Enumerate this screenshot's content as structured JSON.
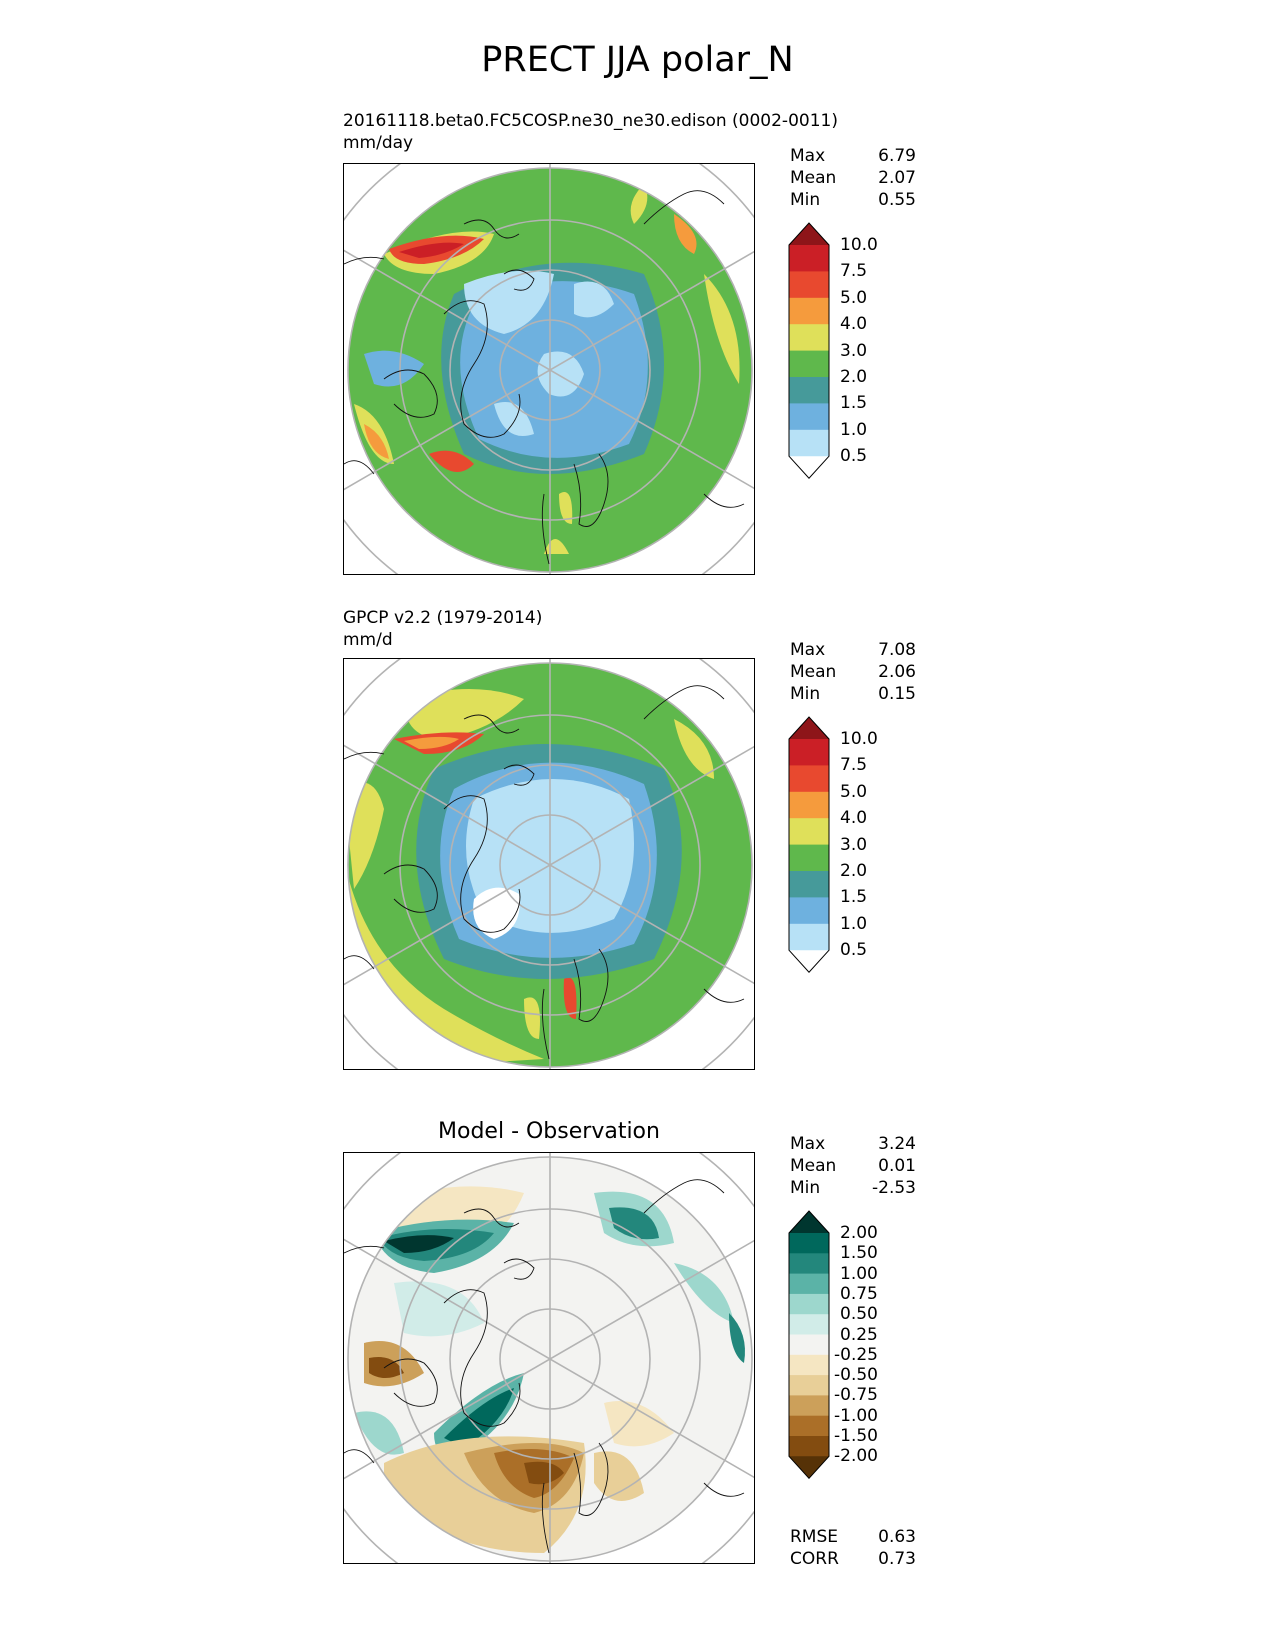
{
  "figure": {
    "title": "PRECT JJA polar_N"
  },
  "panels": [
    {
      "id": "model",
      "caption_line1": "20161118.beta0.FC5COSP.ne30_ne30.edison (0002-0011)",
      "caption_line2": "mm/day",
      "stats": [
        {
          "label": "Max",
          "value": "6.79"
        },
        {
          "label": "Mean",
          "value": "2.07"
        },
        {
          "label": "Min",
          "value": "0.55"
        }
      ],
      "colorbar": {
        "levels": [
          "10.0",
          "7.5",
          "5.0",
          "4.0",
          "3.0",
          "2.0",
          "1.5",
          "1.0",
          "0.5"
        ],
        "colors": [
          "#8e1519",
          "#cb1f26",
          "#e8492f",
          "#f59b3d",
          "#dfe05a",
          "#5fb84c",
          "#469a9a",
          "#6eb1df",
          "#b7e1f6",
          "#ffffff"
        ]
      }
    },
    {
      "id": "obs",
      "caption_line1": "GPCP v2.2 (1979-2014)",
      "caption_line2": "mm/d",
      "stats": [
        {
          "label": "Max",
          "value": "7.08"
        },
        {
          "label": "Mean",
          "value": "2.06"
        },
        {
          "label": "Min",
          "value": "0.15"
        }
      ],
      "colorbar": {
        "levels": [
          "10.0",
          "7.5",
          "5.0",
          "4.0",
          "3.0",
          "2.0",
          "1.5",
          "1.0",
          "0.5"
        ],
        "colors": [
          "#8e1519",
          "#cb1f26",
          "#e8492f",
          "#f59b3d",
          "#dfe05a",
          "#5fb84c",
          "#469a9a",
          "#6eb1df",
          "#b7e1f6",
          "#ffffff"
        ]
      }
    },
    {
      "id": "diff",
      "caption_title": "Model - Observation",
      "stats": [
        {
          "label": "Max",
          "value": "3.24"
        },
        {
          "label": "Mean",
          "value": "0.01"
        },
        {
          "label": "Min",
          "value": "-2.53"
        }
      ],
      "colorbar": {
        "levels": [
          "2.00",
          "1.50",
          "1.00",
          "0.75",
          "0.50",
          "0.25",
          "-0.25",
          "-0.50",
          "-0.75",
          "-1.00",
          "-1.50",
          "-2.00"
        ],
        "colors": [
          "#00362f",
          "#00685c",
          "#23877c",
          "#5bb3a7",
          "#9dd7cd",
          "#d1ece8",
          "#f3f3f1",
          "#f5e6c2",
          "#e8cf98",
          "#cca05a",
          "#ab6f28",
          "#834c10",
          "#563207"
        ]
      },
      "metrics": [
        {
          "label": "RMSE",
          "value": "0.63"
        },
        {
          "label": "CORR",
          "value": "0.73"
        }
      ]
    }
  ]
}
